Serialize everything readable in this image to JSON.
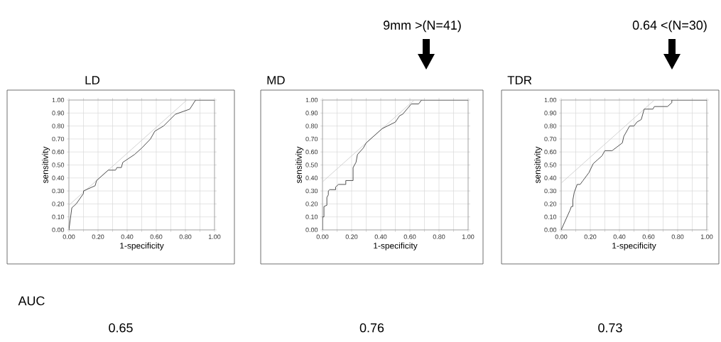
{
  "chart_data": [
    {
      "type": "line",
      "title": "LD",
      "xlabel": "1-specificity",
      "ylabel": "sensitivity",
      "xlim": [
        0,
        1
      ],
      "ylim": [
        0,
        1
      ],
      "grid": true,
      "xticks": [
        {
          "value": 0,
          "label": "0.00"
        },
        {
          "value": 0.1,
          "label": null
        },
        {
          "value": 0.2,
          "label": "0.20"
        },
        {
          "value": 0.3,
          "label": null
        },
        {
          "value": 0.4,
          "label": "0.40"
        },
        {
          "value": 0.5,
          "label": null
        },
        {
          "value": 0.6,
          "label": "0.60"
        },
        {
          "value": 0.7,
          "label": null
        },
        {
          "value": 0.8,
          "label": "0.80"
        },
        {
          "value": 0.9,
          "label": null
        },
        {
          "value": 1,
          "label": "1.00"
        }
      ],
      "yticks": [
        {
          "value": 0,
          "label": "0.00"
        },
        {
          "value": 0.1,
          "label": "0.10"
        },
        {
          "value": 0.2,
          "label": "0.20"
        },
        {
          "value": 0.3,
          "label": "0.30"
        },
        {
          "value": 0.4,
          "label": "0.40"
        },
        {
          "value": 0.5,
          "label": "0.50"
        },
        {
          "value": 0.6,
          "label": "0.60"
        },
        {
          "value": 0.7,
          "label": "0.70"
        },
        {
          "value": 0.8,
          "label": "0.80"
        },
        {
          "value": 0.9,
          "label": "0.90"
        },
        {
          "value": 1,
          "label": "1.00"
        }
      ],
      "series": [
        {
          "color": "#404040",
          "x": [
            0,
            0.02,
            0.05,
            0.1,
            0.1,
            0.18,
            0.19,
            0.27,
            0.32,
            0.33,
            0.36,
            0.37,
            0.45,
            0.5,
            0.56,
            0.59,
            0.65,
            0.73,
            0.83,
            0.87,
            1
          ],
          "values": [
            0,
            0.17,
            0.2,
            0.28,
            0.3,
            0.34,
            0.38,
            0.46,
            0.46,
            0.48,
            0.48,
            0.52,
            0.58,
            0.63,
            0.7,
            0.76,
            0.8,
            0.89,
            0.93,
            1.0,
            1.0
          ]
        },
        {
          "color": "#c8c8c8",
          "x": [
            0,
            0.81
          ],
          "values": [
            0.19,
            1.0
          ]
        }
      ],
      "annotations": [
        "AUC",
        "0.65"
      ]
    },
    {
      "type": "line",
      "title": "MD",
      "xlabel": "1-specificity",
      "ylabel": "sensitivity",
      "xlim": [
        0,
        1
      ],
      "ylim": [
        0,
        1
      ],
      "grid": true,
      "xticks": [
        {
          "value": 0,
          "label": "0.00"
        },
        {
          "value": 0.1,
          "label": null
        },
        {
          "value": 0.2,
          "label": "0.20"
        },
        {
          "value": 0.3,
          "label": null
        },
        {
          "value": 0.4,
          "label": "0.40"
        },
        {
          "value": 0.5,
          "label": null
        },
        {
          "value": 0.6,
          "label": "0.60"
        },
        {
          "value": 0.7,
          "label": null
        },
        {
          "value": 0.8,
          "label": "0.80"
        },
        {
          "value": 0.9,
          "label": null
        },
        {
          "value": 1,
          "label": "1.00"
        }
      ],
      "yticks": [
        {
          "value": 0,
          "label": "0.00"
        },
        {
          "value": 0.1,
          "label": "0.10"
        },
        {
          "value": 0.2,
          "label": "0.20"
        },
        {
          "value": 0.3,
          "label": "0.30"
        },
        {
          "value": 0.4,
          "label": "0.40"
        },
        {
          "value": 0.5,
          "label": "0.50"
        },
        {
          "value": 0.6,
          "label": "0.60"
        },
        {
          "value": 0.7,
          "label": "0.70"
        },
        {
          "value": 0.8,
          "label": "0.80"
        },
        {
          "value": 0.9,
          "label": "0.90"
        },
        {
          "value": 1,
          "label": "1.00"
        }
      ],
      "series": [
        {
          "color": "#404040",
          "x": [
            0,
            0,
            0.01,
            0.01,
            0.03,
            0.03,
            0.04,
            0.04,
            0.05,
            0.09,
            0.09,
            0.11,
            0.16,
            0.16,
            0.21,
            0.21,
            0.23,
            0.24,
            0.28,
            0.3,
            0.41,
            0.5,
            0.53,
            0.55,
            0.61,
            0.66,
            0.68,
            1
          ],
          "values": [
            0,
            0.1,
            0.1,
            0.18,
            0.19,
            0.25,
            0.27,
            0.3,
            0.31,
            0.31,
            0.33,
            0.35,
            0.35,
            0.38,
            0.38,
            0.48,
            0.52,
            0.58,
            0.63,
            0.67,
            0.78,
            0.83,
            0.88,
            0.89,
            0.97,
            0.97,
            1.0,
            1.0
          ]
        },
        {
          "color": "#c8c8c8",
          "x": [
            0,
            0.63
          ],
          "values": [
            0.37,
            1.0
          ]
        }
      ],
      "annotations": [
        "9mm >(N=41)",
        "0.76"
      ]
    },
    {
      "type": "line",
      "title": "TDR",
      "xlabel": "1-specificity",
      "ylabel": "sensitivity",
      "xlim": [
        0,
        1
      ],
      "ylim": [
        0,
        1
      ],
      "grid": true,
      "xticks": [
        {
          "value": 0,
          "label": "0.00"
        },
        {
          "value": 0.1,
          "label": null
        },
        {
          "value": 0.2,
          "label": "0.20"
        },
        {
          "value": 0.3,
          "label": null
        },
        {
          "value": 0.4,
          "label": "0.40"
        },
        {
          "value": 0.5,
          "label": null
        },
        {
          "value": 0.6,
          "label": "0.60"
        },
        {
          "value": 0.7,
          "label": null
        },
        {
          "value": 0.8,
          "label": "0.80"
        },
        {
          "value": 0.9,
          "label": null
        },
        {
          "value": 1,
          "label": "1.00"
        }
      ],
      "yticks": [
        {
          "value": 0,
          "label": "0.00"
        },
        {
          "value": 0.1,
          "label": "0.10"
        },
        {
          "value": 0.2,
          "label": "0.20"
        },
        {
          "value": 0.3,
          "label": "0.30"
        },
        {
          "value": 0.4,
          "label": "0.40"
        },
        {
          "value": 0.5,
          "label": "0.50"
        },
        {
          "value": 0.6,
          "label": "0.60"
        },
        {
          "value": 0.7,
          "label": "0.70"
        },
        {
          "value": 0.8,
          "label": "0.80"
        },
        {
          "value": 0.9,
          "label": "0.90"
        },
        {
          "value": 1,
          "label": "1.00"
        }
      ],
      "series": [
        {
          "color": "#404040",
          "x": [
            0,
            0.06,
            0.07,
            0.08,
            0.08,
            0.09,
            0.11,
            0.13,
            0.15,
            0.19,
            0.22,
            0.25,
            0.28,
            0.3,
            0.35,
            0.42,
            0.43,
            0.47,
            0.5,
            0.52,
            0.55,
            0.56,
            0.57,
            0.63,
            0.64,
            0.73,
            0.76,
            0.76,
            1
          ],
          "values": [
            0,
            0.15,
            0.18,
            0.18,
            0.23,
            0.29,
            0.35,
            0.35,
            0.38,
            0.44,
            0.51,
            0.54,
            0.57,
            0.61,
            0.61,
            0.67,
            0.72,
            0.8,
            0.8,
            0.83,
            0.85,
            0.89,
            0.93,
            0.93,
            0.95,
            0.95,
            0.98,
            1.0,
            1.0
          ]
        },
        {
          "color": "#c8c8c8",
          "x": [
            0,
            0.64
          ],
          "values": [
            0.36,
            1.0
          ]
        }
      ],
      "annotations": [
        "0.64 <(N=30)",
        "0.73"
      ]
    }
  ]
}
